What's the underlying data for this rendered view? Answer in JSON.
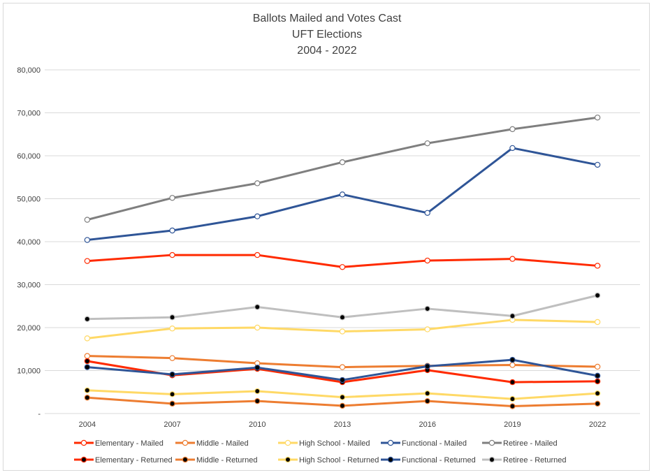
{
  "chart_data": {
    "type": "line",
    "title": [
      "Ballots Mailed and Votes Cast",
      "UFT Elections",
      "2004 - 2022"
    ],
    "categories": [
      "2004",
      "2007",
      "2010",
      "2013",
      "2016",
      "2019",
      "2022"
    ],
    "ylim": [
      0,
      80000
    ],
    "yticks": [
      0,
      10000,
      20000,
      30000,
      40000,
      50000,
      60000,
      70000,
      80000
    ],
    "ytick_labels": [
      "-",
      "10,000",
      "20,000",
      "30,000",
      "40,000",
      "50,000",
      "60,000",
      "70,000",
      "80,000"
    ],
    "grid": true,
    "legend_position": "bottom",
    "series": [
      {
        "name": "Elementary - Mailed",
        "color": "#ff2a00",
        "marker_fill": "#ffffff",
        "values": [
          35500,
          36900,
          36900,
          34100,
          35600,
          36000,
          34400
        ]
      },
      {
        "name": "Middle - Mailed",
        "color": "#ed7d31",
        "marker_fill": "#ffffff",
        "values": [
          13400,
          12900,
          11700,
          10800,
          11100,
          11300,
          10900
        ]
      },
      {
        "name": "High School - Mailed",
        "color": "#ffd966",
        "marker_fill": "#ffffff",
        "values": [
          17500,
          19800,
          20000,
          19100,
          19600,
          21800,
          21300
        ]
      },
      {
        "name": "Functional - Mailed",
        "color": "#2f5597",
        "marker_fill": "#ffffff",
        "values": [
          40400,
          42600,
          45900,
          51000,
          46700,
          61800,
          57900
        ]
      },
      {
        "name": "Retiree - Mailed",
        "color": "#7f7f7f",
        "marker_fill": "#ffffff",
        "values": [
          45100,
          50200,
          53600,
          58500,
          62900,
          66200,
          68900
        ]
      },
      {
        "name": "Elementary - Returned",
        "color": "#ff2a00",
        "marker_fill": "#000000",
        "values": [
          12200,
          8900,
          10400,
          7300,
          10100,
          7300,
          7500
        ]
      },
      {
        "name": "Middle - Returned",
        "color": "#ed7d31",
        "marker_fill": "#000000",
        "values": [
          3700,
          2300,
          2900,
          1800,
          2900,
          1700,
          2300
        ]
      },
      {
        "name": "High School - Returned",
        "color": "#ffd966",
        "marker_fill": "#000000",
        "values": [
          5400,
          4500,
          5200,
          3800,
          4700,
          3400,
          4700
        ]
      },
      {
        "name": "Functional - Returned",
        "color": "#2f5597",
        "marker_fill": "#000000",
        "values": [
          10800,
          9100,
          10700,
          7800,
          11000,
          12500,
          8800
        ]
      },
      {
        "name": "Retiree - Returned",
        "color": "#bfbfbf",
        "marker_fill": "#000000",
        "values": [
          22000,
          22400,
          24800,
          22400,
          24400,
          22700,
          27500
        ]
      }
    ]
  }
}
